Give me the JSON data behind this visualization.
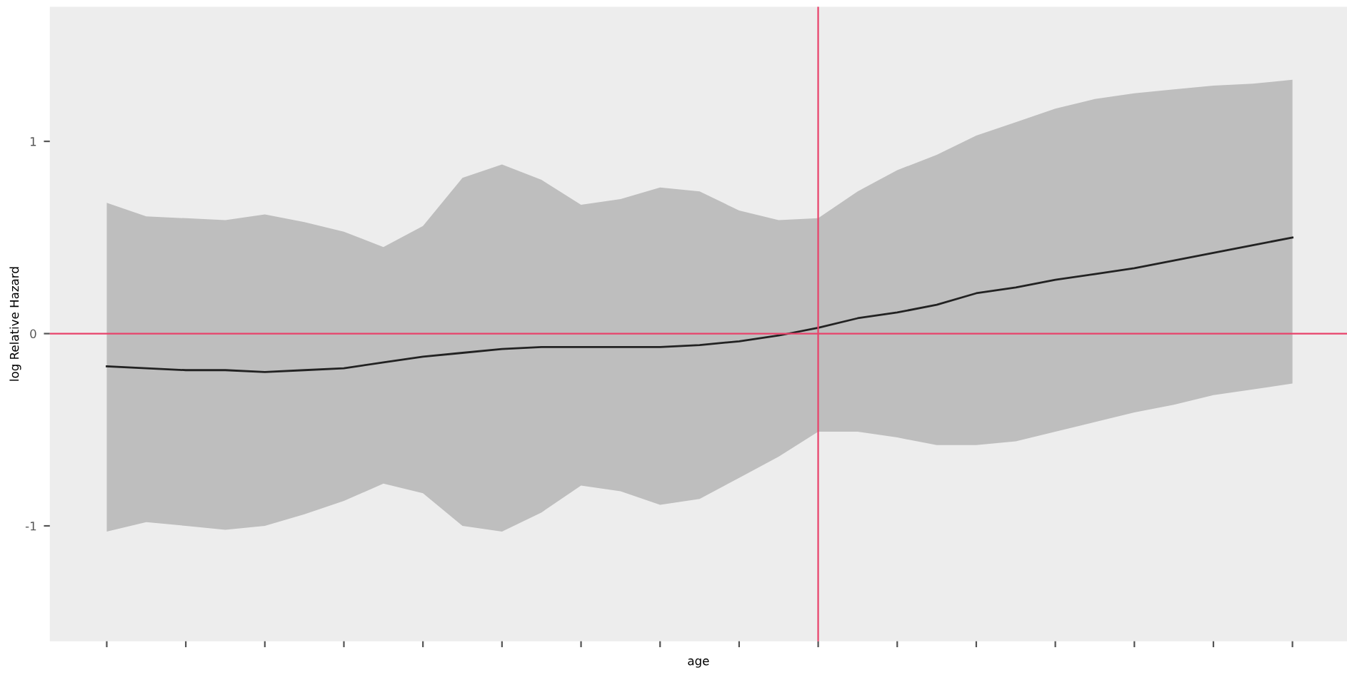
{
  "chart_data": {
    "type": "line",
    "xlabel": "age",
    "ylabel": "log Relative Hazard",
    "categories": [
      null,
      null,
      null,
      null,
      null,
      null,
      null,
      null,
      null,
      null,
      null,
      null,
      null,
      null,
      null,
      null,
      null,
      null,
      null,
      null,
      null,
      null,
      null,
      null,
      null,
      null,
      null,
      null,
      null,
      null,
      null
    ],
    "ylim": [
      -1.6,
      1.7
    ],
    "yticks": [
      {
        "value": -1,
        "label": "-1"
      },
      {
        "value": 0,
        "label": "0"
      },
      {
        "value": 1,
        "label": "1"
      }
    ],
    "grid": false,
    "marker": "none",
    "line_style": "solid",
    "ref_lines": [
      {
        "axis": "y",
        "value": 0,
        "color": "#e8426a"
      }
    ],
    "series": [
      {
        "color": "#222222",
        "values": [
          -0.17,
          -0.18,
          -0.19,
          -0.19,
          -0.2,
          -0.19,
          -0.18,
          -0.15,
          -0.12,
          -0.1,
          -0.08,
          -0.07,
          -0.07,
          -0.07,
          -0.07,
          -0.06,
          -0.04,
          -0.01,
          0.03,
          0.08,
          0.11,
          0.15,
          0.21,
          0.24,
          0.28,
          0.31,
          0.34,
          0.38,
          0.42,
          0.46,
          0.5
        ],
        "upper": [
          0.68,
          0.61,
          0.6,
          0.59,
          0.62,
          0.58,
          0.53,
          0.45,
          0.56,
          0.81,
          0.88,
          0.8,
          0.67,
          0.7,
          0.76,
          0.74,
          0.64,
          0.59,
          0.6,
          0.74,
          0.85,
          0.93,
          1.03,
          1.1,
          1.17,
          1.22,
          1.25,
          1.27,
          1.29,
          1.3,
          1.32
        ],
        "lower": [
          -1.03,
          -0.98,
          -1.0,
          -1.02,
          -1.0,
          -0.94,
          -0.87,
          -0.78,
          -0.83,
          -1.0,
          -1.03,
          -0.93,
          -0.79,
          -0.82,
          -0.89,
          -0.86,
          -0.75,
          -0.64,
          -0.51,
          -0.51,
          -0.54,
          -0.58,
          -0.58,
          -0.56,
          -0.51,
          -0.46,
          -0.41,
          -0.37,
          -0.32,
          -0.29,
          -0.26
        ]
      }
    ]
  }
}
